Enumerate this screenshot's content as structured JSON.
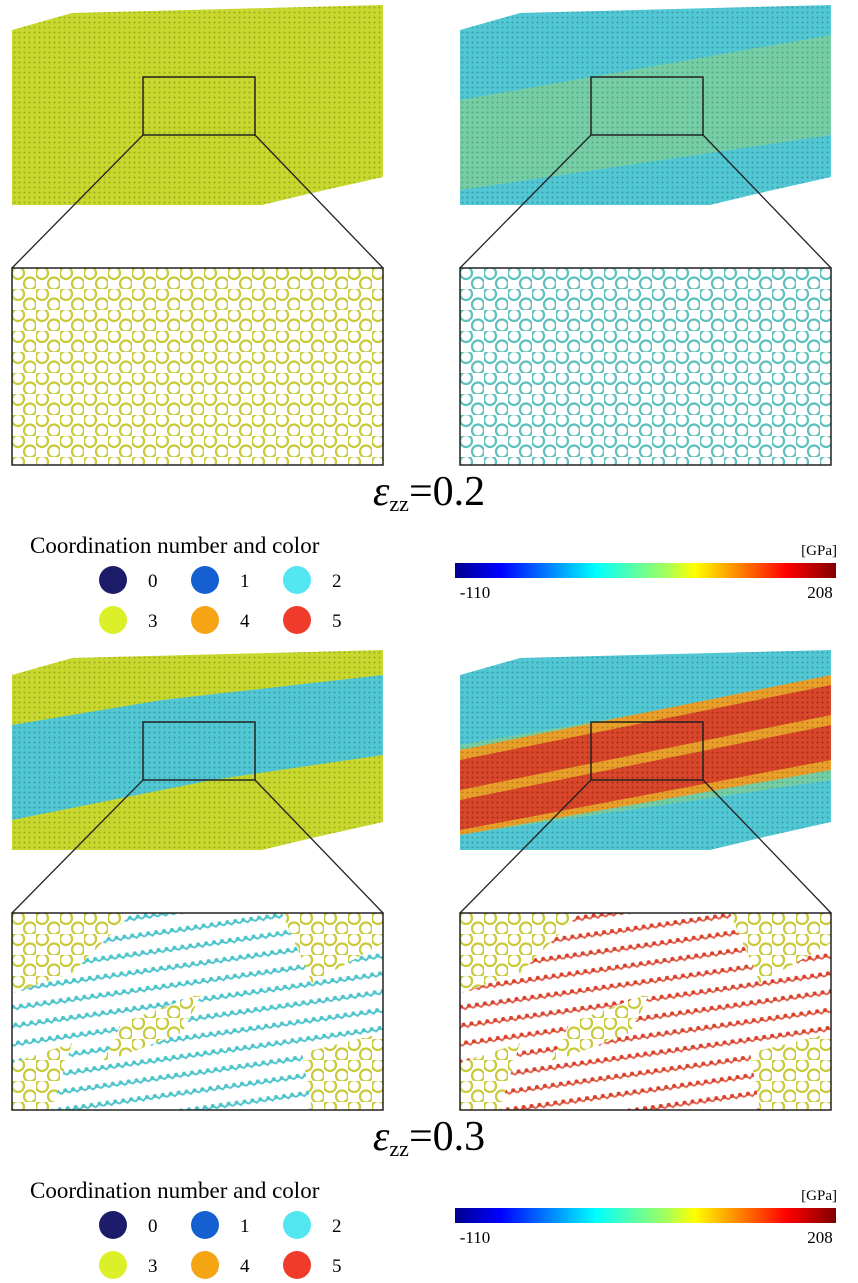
{
  "panels": [
    {
      "strain": {
        "symbol": "ε",
        "subscript": "zz",
        "value": "=0.2"
      },
      "legend": {
        "title": "Coordination number and color",
        "items": [
          {
            "label": "0",
            "color": "#1c1c6b"
          },
          {
            "label": "1",
            "color": "#1560d0"
          },
          {
            "label": "2",
            "color": "#52e6f0"
          },
          {
            "label": "3",
            "color": "#dcf02a"
          },
          {
            "label": "4",
            "color": "#f5a414"
          },
          {
            "label": "5",
            "color": "#f03a2a"
          }
        ]
      },
      "colorbar": {
        "unit": "[GPa]",
        "min": "-110",
        "max": "208"
      }
    },
    {
      "strain": {
        "symbol": "ε",
        "subscript": "zz",
        "value": "=0.3"
      },
      "legend": {
        "title": "Coordination number and color",
        "items": [
          {
            "label": "0",
            "color": "#1c1c6b"
          },
          {
            "label": "1",
            "color": "#1560d0"
          },
          {
            "label": "2",
            "color": "#52e6f0"
          },
          {
            "label": "3",
            "color": "#dcf02a"
          },
          {
            "label": "4",
            "color": "#f5a414"
          },
          {
            "label": "5",
            "color": "#f03a2a"
          }
        ]
      },
      "colorbar": {
        "unit": "[GPa]",
        "min": "-110",
        "max": "208"
      }
    }
  ]
}
